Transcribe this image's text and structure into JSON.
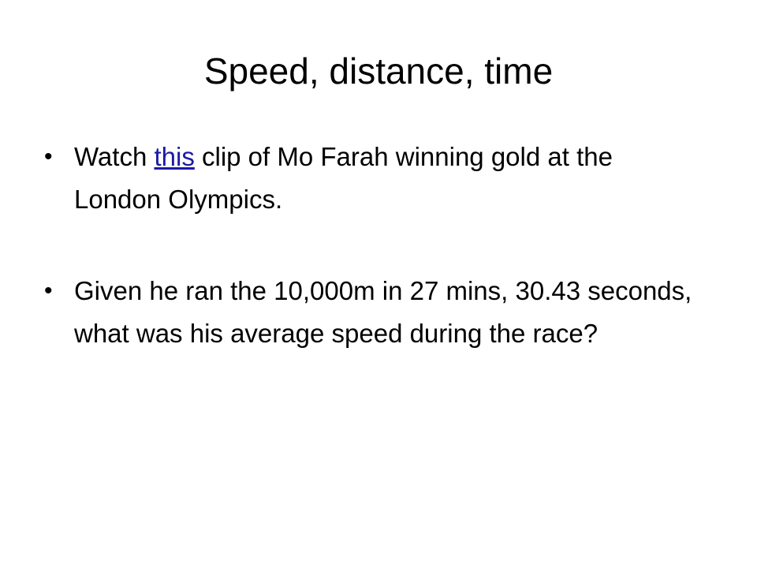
{
  "slide": {
    "title": "Speed, distance, time",
    "bullet_symbol": "•",
    "bullet1": {
      "before_link": "Watch ",
      "link_text": "this",
      "after_link": " clip of Mo Farah winning gold at the London Olympics."
    },
    "bullet2": {
      "text": "Given he ran the 10,000m in 27 mins, 30.43 seconds, what was his average speed during the race?"
    }
  },
  "colors": {
    "background": "#ffffff",
    "text": "#000000",
    "link": "#1a1aa8"
  }
}
